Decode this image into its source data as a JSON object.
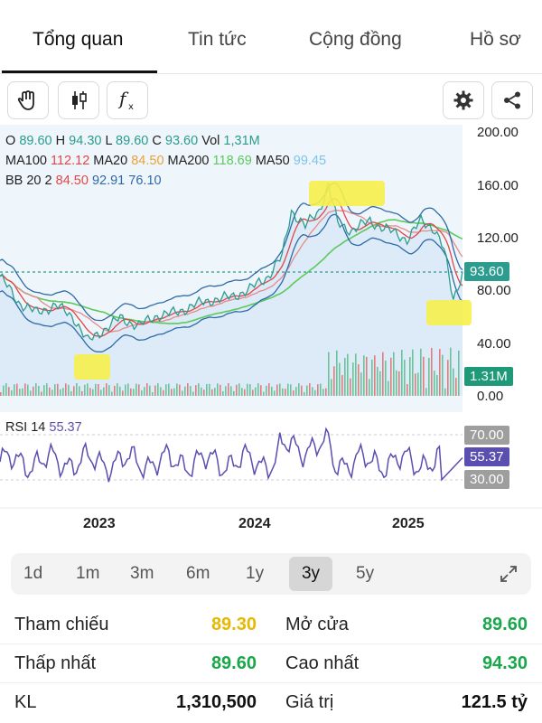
{
  "tabs": [
    {
      "label": "Tổng quan",
      "active": true
    },
    {
      "label": "Tin tức",
      "active": false
    },
    {
      "label": "Cộng đồng",
      "active": false
    },
    {
      "label": "Hồ sơ",
      "active": false
    }
  ],
  "toolbar": {
    "tools": [
      "hand-icon",
      "candlestick-icon",
      "formula-icon"
    ],
    "right": [
      "gear-icon",
      "share-icon"
    ]
  },
  "ohlc": {
    "o_label": "O",
    "o": "89.60",
    "h_label": "H",
    "h": "94.30",
    "l_label": "L",
    "l": "89.60",
    "c_label": "C",
    "c": "93.60",
    "vol_label": "Vol",
    "vol": "1,31M"
  },
  "ma": {
    "ma100_label": "MA100",
    "ma100": "112.12",
    "ma20_label": "MA20",
    "ma20": "84.50",
    "ma200_label": "MA200",
    "ma200": "118.69",
    "ma50_label": "MA50",
    "ma50": "99.45"
  },
  "bb": {
    "label": "BB 20 2",
    "v1": "84.50",
    "v2": "92.91",
    "v3": "76.10"
  },
  "price_axis": [
    "200.00",
    "160.00",
    "120.00",
    "80.00",
    "40.00",
    "0.00"
  ],
  "current_price_tag": "93.60",
  "volume_tag": "1.31M",
  "rsi": {
    "label": "RSI 14",
    "value": "55.37",
    "levels": [
      "70.00",
      "30.00"
    ],
    "current_tag": "55.37"
  },
  "years": [
    "2023",
    "2024",
    "2025"
  ],
  "periods": [
    {
      "label": "1d",
      "active": false
    },
    {
      "label": "1m",
      "active": false
    },
    {
      "label": "3m",
      "active": false
    },
    {
      "label": "6m",
      "active": false
    },
    {
      "label": "1y",
      "active": false
    },
    {
      "label": "3y",
      "active": true
    },
    {
      "label": "5y",
      "active": false
    }
  ],
  "stats": {
    "tham_chieu_label": "Tham chiếu",
    "tham_chieu": "89.30",
    "mo_cua_label": "Mở cửa",
    "mo_cua": "89.60",
    "thap_nhat_label": "Thấp nhất",
    "thap_nhat": "89.60",
    "cao_nhat_label": "Cao nhất",
    "cao_nhat": "94.30",
    "kl_label": "KL",
    "kl": "1,310,500",
    "gia_tri_label": "Giá trị",
    "gia_tri": "121.5 tỷ"
  },
  "colors": {
    "green": "#1aa64a",
    "yellow": "#e6b800",
    "teal": "#2b9c8e",
    "red": "#e04848",
    "orange": "#e8a33a",
    "lime": "#5cc95c",
    "lightblue": "#7fc3ea",
    "purple": "#5a4fb0",
    "highlight": "#f6f04a"
  }
}
